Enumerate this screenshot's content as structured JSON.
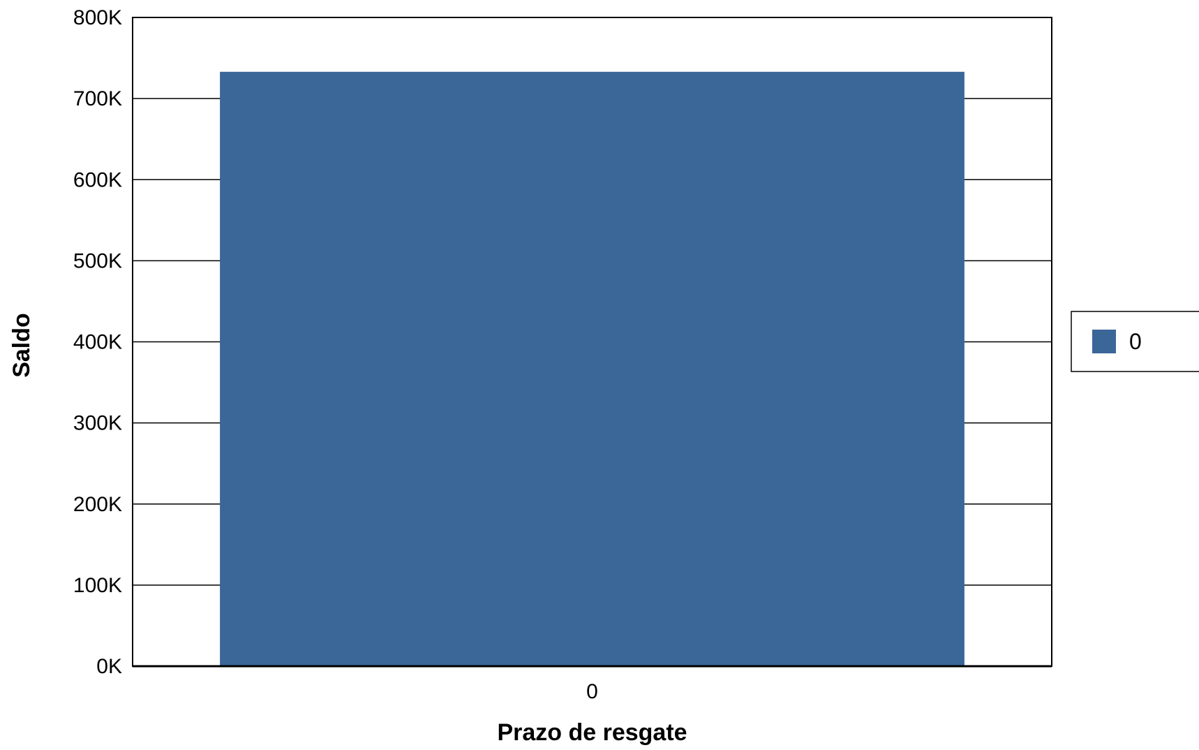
{
  "chart_data": {
    "type": "bar",
    "title": "",
    "xlabel": "Prazo de resgate",
    "ylabel": "Saldo",
    "categories": [
      "0"
    ],
    "series": [
      {
        "name": "0",
        "values": [
          733000
        ],
        "color": "#3b6698"
      }
    ],
    "ylim": [
      0,
      800000
    ],
    "yticks": [
      {
        "value": 0,
        "label": "0K"
      },
      {
        "value": 100000,
        "label": "100K"
      },
      {
        "value": 200000,
        "label": "200K"
      },
      {
        "value": 300000,
        "label": "300K"
      },
      {
        "value": 400000,
        "label": "400K"
      },
      {
        "value": 500000,
        "label": "500K"
      },
      {
        "value": 600000,
        "label": "600K"
      },
      {
        "value": 700000,
        "label": "700K"
      },
      {
        "value": 800000,
        "label": "800K"
      }
    ],
    "grid": true,
    "legend_position": "right"
  }
}
